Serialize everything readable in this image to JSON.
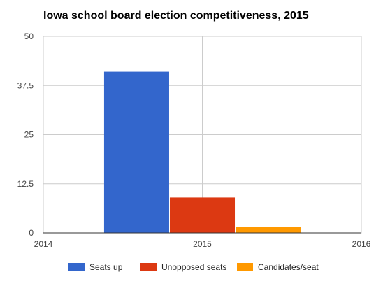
{
  "chart_data": {
    "type": "bar",
    "title": "Iowa school board election competitiveness, 2015",
    "xlabel": "",
    "ylabel": "",
    "ylim": [
      0,
      50
    ],
    "xlim": [
      2014,
      2016
    ],
    "yticks": [
      "0",
      "12.5",
      "25",
      "37.5",
      "50"
    ],
    "xticks": [
      "2014",
      "2015",
      "2016"
    ],
    "x": [
      2015
    ],
    "series": [
      {
        "name": "Seats up",
        "values": [
          41
        ],
        "color": "#3366cc"
      },
      {
        "name": "Unopposed seats",
        "values": [
          9
        ],
        "color": "#dc3912"
      },
      {
        "name": "Candidates/seat",
        "values": [
          1.5
        ],
        "color": "#ff9900"
      }
    ],
    "grid": true,
    "legend_position": "bottom"
  }
}
